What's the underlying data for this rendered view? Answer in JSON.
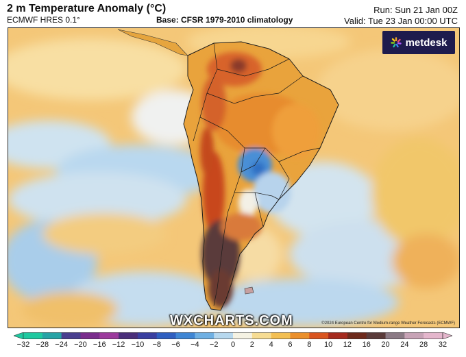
{
  "header": {
    "title": "2 m Temperature Anomaly (°C)",
    "model": "ECMWF HRES 0.1°",
    "base": "Base: CFSR 1979-2010 climatology",
    "run": "Run: Sun 21 Jan 00Z",
    "valid": "Valid: Tue 23 Jan 00:00 UTC"
  },
  "logo": {
    "text": "metdesk"
  },
  "watermark": {
    "text": "WXCHARTS.COM"
  },
  "copyright": "©2024 European Centre for Medium-range Weather Forecasts (ECMWF)",
  "colorbar": {
    "ticks": [
      "−32",
      "−28",
      "−24",
      "−20",
      "−16",
      "−12",
      "−10",
      "−8",
      "−6",
      "−4",
      "−2",
      "0",
      "2",
      "4",
      "6",
      "8",
      "10",
      "12",
      "16",
      "20",
      "24",
      "28",
      "32"
    ],
    "colors": [
      "#1fc9a0",
      "#27a3a6",
      "#4a3f8f",
      "#7a2c8c",
      "#9c3a9c",
      "#4b2f7a",
      "#3a3fa0",
      "#2f5fc0",
      "#3f86d4",
      "#6fb0e3",
      "#b7d8ee",
      "#f5f2e3",
      "#f6dc93",
      "#f3bf52",
      "#eb8f2a",
      "#d9541f",
      "#a52a1e",
      "#6e2a1c",
      "#5a3b3a",
      "#8b7a85",
      "#c7a3b6",
      "#e4b6cc"
    ],
    "colors_meaning": "left-to-right fill colors of the legend bar"
  },
  "map": {
    "region": "South America",
    "colors": {
      "ocean_warm": "#f2c36b",
      "ocean_cool": "#b9d8ef",
      "land_hot": "#e07a2a",
      "land_extreme": "#5a3b3a",
      "land_cool": "#4a8fd6"
    }
  }
}
